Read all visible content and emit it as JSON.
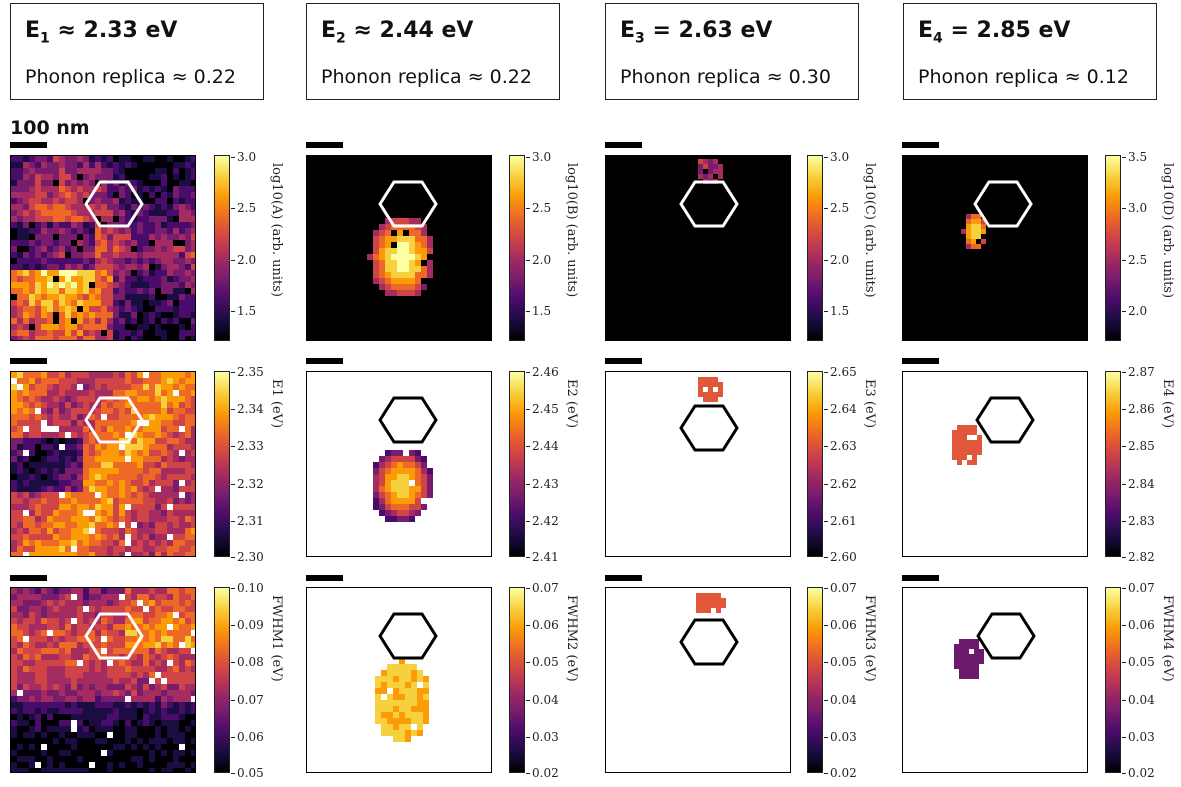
{
  "headers": [
    {
      "sym": "E",
      "sub": "1",
      "eq": " ≈ 2.33 eV",
      "replica": "Phonon replica ≈ 0.22"
    },
    {
      "sym": "E",
      "sub": "2",
      "eq": " ≈ 2.44 eV",
      "replica": "Phonon replica ≈ 0.22"
    },
    {
      "sym": "E",
      "sub": "3",
      "eq": " = 2.63 eV",
      "replica": "Phonon replica ≈ 0.30"
    },
    {
      "sym": "E",
      "sub": "4",
      "eq": " = 2.85 eV",
      "replica": "Phonon replica ≈ 0.12"
    }
  ],
  "scale_label": "100 nm",
  "colorbars": [
    [
      {
        "label": "log10(A) (arb. units)",
        "ticks": [
          "3.0",
          "2.5",
          "2.0",
          "1.5"
        ]
      },
      {
        "label": "E1 (eV)",
        "ticks": [
          "2.35",
          "2.34",
          "2.33",
          "2.32",
          "2.31",
          "2.30"
        ]
      },
      {
        "label": "FWHM1 (eV)",
        "ticks": [
          "0.10",
          "0.09",
          "0.08",
          "0.07",
          "0.06",
          "0.05"
        ]
      }
    ],
    [
      {
        "label": "log10(B) (arb. units)",
        "ticks": [
          "3.0",
          "2.5",
          "2.0",
          "1.5"
        ]
      },
      {
        "label": "E2 (eV)",
        "ticks": [
          "2.46",
          "2.45",
          "2.44",
          "2.43",
          "2.42",
          "2.41"
        ]
      },
      {
        "label": "FWHM2 (eV)",
        "ticks": [
          "0.07",
          "0.06",
          "0.05",
          "0.04",
          "0.03",
          "0.02"
        ]
      }
    ],
    [
      {
        "label": "log10(C) (arb. units)",
        "ticks": [
          "3.0",
          "2.5",
          "2.0",
          "1.5"
        ]
      },
      {
        "label": "E3 (eV)",
        "ticks": [
          "2.65",
          "2.64",
          "2.63",
          "2.62",
          "2.61",
          "2.60"
        ]
      },
      {
        "label": "FWHM3 (eV)",
        "ticks": [
          "0.07",
          "0.06",
          "0.05",
          "0.04",
          "0.03",
          "0.02"
        ]
      }
    ],
    [
      {
        "label": "log10(D) (arb. units)",
        "ticks": [
          "3.5",
          "3.0",
          "2.5",
          "2.0"
        ]
      },
      {
        "label": "E4 (eV)",
        "ticks": [
          "2.87",
          "2.86",
          "2.85",
          "2.84",
          "2.83",
          "2.82"
        ]
      },
      {
        "label": "FWHM4 (eV)",
        "ticks": [
          "0.07",
          "0.06",
          "0.05",
          "0.04",
          "0.03",
          "0.02"
        ]
      }
    ]
  ],
  "colors": {
    "inferno": [
      "#000004",
      "#1b0c41",
      "#4a0c6b",
      "#781c6d",
      "#a52c60",
      "#cf4446",
      "#ed6925",
      "#fb9b06",
      "#f7d13d",
      "#fcffa4"
    ]
  }
}
